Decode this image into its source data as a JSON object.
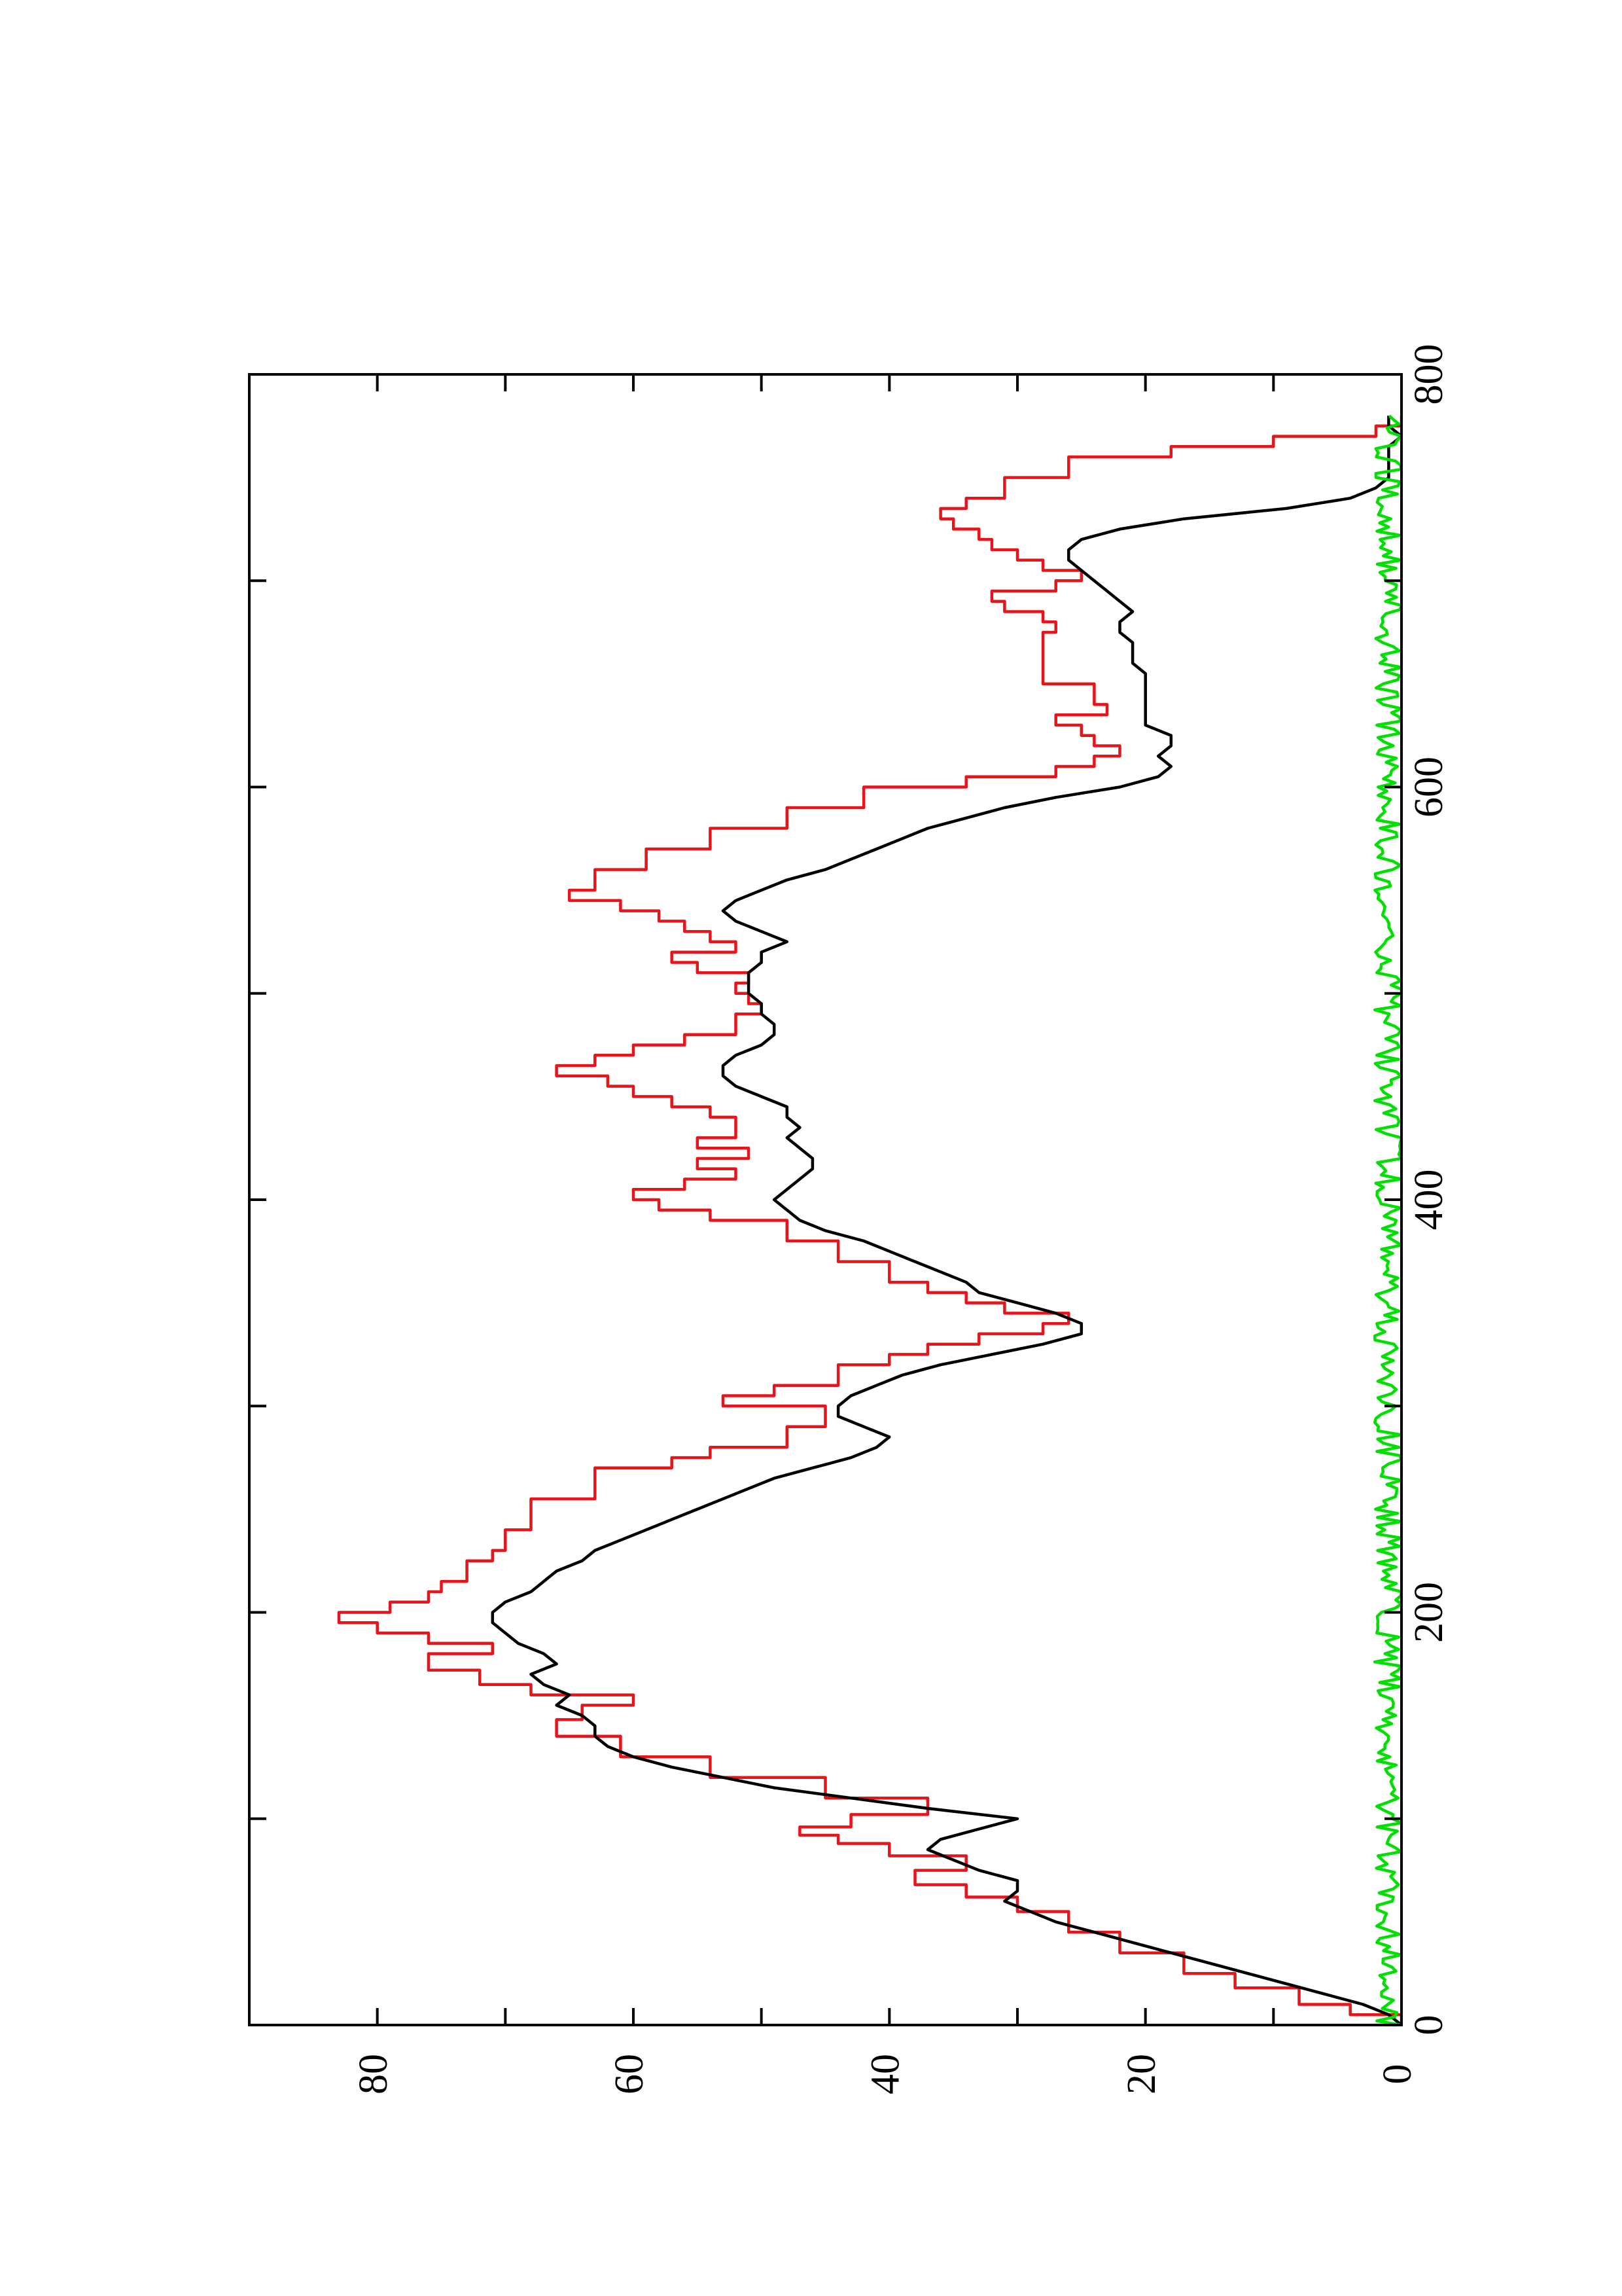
{
  "chart_data": {
    "type": "line",
    "orientation": "rotated-90-clockwise",
    "title": "",
    "xlabel": "",
    "ylabel": "",
    "xlim": [
      0,
      800
    ],
    "ylim": [
      0,
      90
    ],
    "xticks": [
      0,
      200,
      400,
      600,
      800
    ],
    "xticks_minor": [
      100,
      300,
      500,
      700
    ],
    "yticks": [
      0,
      20,
      40,
      60,
      80
    ],
    "yticks_minor": [
      10,
      30,
      50,
      70
    ],
    "xtick_labels": [
      "0",
      "200",
      "400",
      "600",
      "800"
    ],
    "ytick_labels": [
      "0",
      "20",
      "40",
      "60",
      "80"
    ],
    "grid": false,
    "legend": "none",
    "series": [
      {
        "color": "#e8141c",
        "style": "step",
        "x": [
          0,
          5,
          10,
          18,
          25,
          35,
          45,
          55,
          62,
          68,
          75,
          82,
          88,
          92,
          96,
          102,
          110,
          120,
          130,
          140,
          148,
          155,
          160,
          165,
          172,
          180,
          185,
          190,
          195,
          200,
          205,
          210,
          215,
          220,
          225,
          230,
          240,
          255,
          270,
          275,
          280,
          290,
          300,
          305,
          310,
          320,
          325,
          330,
          335,
          340,
          345,
          350,
          355,
          360,
          370,
          380,
          390,
          395,
          400,
          405,
          410,
          415,
          420,
          425,
          430,
          440,
          445,
          450,
          455,
          460,
          465,
          470,
          475,
          480,
          490,
          495,
          500,
          505,
          510,
          515,
          520,
          525,
          530,
          535,
          540,
          545,
          550,
          560,
          570,
          580,
          590,
          600,
          605,
          610,
          615,
          620,
          625,
          630,
          635,
          640,
          650,
          660,
          670,
          675,
          680,
          685,
          690,
          695,
          700,
          705,
          710,
          715,
          720,
          725,
          730,
          735,
          740,
          750,
          760,
          765,
          770,
          775,
          780
        ],
        "y": [
          0,
          4,
          8,
          13,
          17,
          22,
          26,
          30,
          34,
          38,
          34,
          40,
          44,
          47,
          43,
          37,
          45,
          54,
          61,
          66,
          64,
          60,
          68,
          72,
          76,
          71,
          76,
          80,
          83,
          79,
          76,
          75,
          73,
          73,
          71,
          70,
          68,
          63,
          57,
          54,
          48,
          45,
          53,
          49,
          44,
          40,
          37,
          33,
          28,
          26,
          31,
          34,
          37,
          40,
          44,
          48,
          54,
          58,
          60,
          56,
          52,
          55,
          51,
          55,
          52,
          54,
          57,
          60,
          62,
          66,
          63,
          60,
          56,
          52,
          50,
          51,
          52,
          51,
          55,
          57,
          52,
          54,
          56,
          58,
          61,
          65,
          63,
          59,
          54,
          48,
          42,
          34,
          27,
          24,
          22,
          24,
          25,
          27,
          23,
          24,
          28,
          28,
          28,
          27,
          28,
          31,
          32,
          27,
          25,
          28,
          30,
          32,
          33,
          35,
          36,
          34,
          31,
          26,
          18,
          10,
          2,
          0,
          0
        ]
      },
      {
        "color": "#000000",
        "style": "line",
        "x": [
          0,
          5,
          10,
          15,
          20,
          25,
          30,
          35,
          40,
          45,
          50,
          55,
          60,
          65,
          70,
          75,
          80,
          85,
          90,
          95,
          100,
          105,
          110,
          115,
          120,
          125,
          130,
          135,
          140,
          145,
          150,
          155,
          160,
          165,
          170,
          175,
          180,
          185,
          190,
          195,
          200,
          205,
          210,
          215,
          220,
          225,
          230,
          235,
          240,
          245,
          250,
          255,
          260,
          265,
          270,
          275,
          280,
          285,
          290,
          295,
          300,
          305,
          310,
          315,
          320,
          325,
          330,
          335,
          340,
          345,
          350,
          355,
          360,
          365,
          370,
          375,
          380,
          385,
          390,
          395,
          400,
          405,
          410,
          415,
          420,
          425,
          430,
          435,
          440,
          445,
          450,
          455,
          460,
          465,
          470,
          475,
          480,
          485,
          490,
          495,
          500,
          505,
          510,
          515,
          520,
          525,
          530,
          535,
          540,
          545,
          550,
          555,
          560,
          565,
          570,
          575,
          580,
          585,
          590,
          595,
          600,
          605,
          610,
          615,
          620,
          625,
          630,
          635,
          640,
          645,
          650,
          655,
          660,
          665,
          670,
          675,
          680,
          685,
          690,
          695,
          700,
          705,
          710,
          715,
          720,
          725,
          730,
          735,
          740,
          745,
          750,
          755,
          760,
          765,
          770,
          775,
          780
        ],
        "y": [
          0,
          1,
          3,
          6,
          9,
          12,
          15,
          18,
          21,
          24,
          27,
          29,
          31,
          30,
          30,
          33,
          35,
          37,
          36,
          33,
          30,
          37,
          43,
          49,
          53,
          57,
          60,
          62,
          63,
          63,
          64,
          66,
          65,
          67,
          68,
          66,
          67,
          69,
          70,
          71,
          71,
          70,
          68,
          67,
          66,
          64,
          63,
          61,
          59,
          57,
          55,
          53,
          51,
          49,
          46,
          43,
          41,
          40,
          42,
          44,
          44,
          43,
          41,
          39,
          36,
          32,
          28,
          25,
          25,
          27,
          30,
          33,
          34,
          36,
          38,
          40,
          42,
          45,
          47,
          48,
          49,
          48,
          47,
          46,
          46,
          47,
          48,
          47,
          48,
          48,
          50,
          52,
          53,
          53,
          52,
          50,
          49,
          49,
          50,
          50,
          51,
          51,
          51,
          50,
          50,
          48,
          50,
          52,
          53,
          52,
          50,
          48,
          45,
          43,
          41,
          39,
          37,
          34,
          31,
          27,
          22,
          19,
          18,
          19,
          18,
          18,
          20,
          20,
          20,
          20,
          20,
          20,
          21,
          21,
          21,
          22,
          22,
          21,
          22,
          23,
          24,
          25,
          26,
          26,
          25,
          22,
          17,
          9,
          4,
          2,
          1,
          1,
          1,
          1,
          0,
          1,
          1
        ]
      },
      {
        "color": "#00e000",
        "style": "noisy",
        "x_start": 0,
        "x_end": 780,
        "mean": 1,
        "max": 3
      }
    ]
  }
}
